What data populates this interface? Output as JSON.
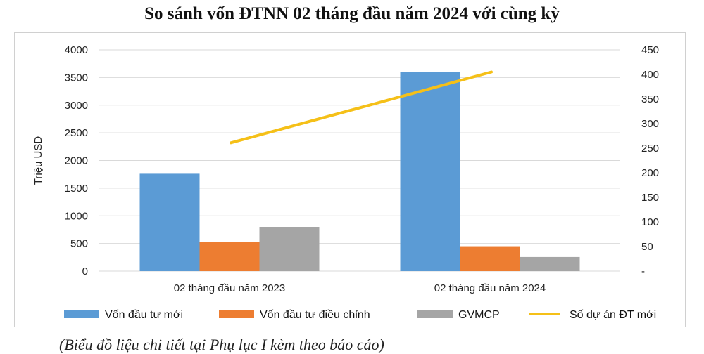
{
  "chart_data": {
    "type": "bar",
    "title": "So sánh vốn ĐTNN 02 tháng đầu năm 2024 với cùng kỳ",
    "ylabel": "Triệu USD",
    "y2label": "",
    "categories": [
      "02 tháng đầu năm 2023",
      "02 tháng đầu năm 2024"
    ],
    "ylim": [
      0,
      4000
    ],
    "yticks": [
      "0",
      "500",
      "1000",
      "1500",
      "2000",
      "2500",
      "3000",
      "3500",
      "4000"
    ],
    "y2lim": [
      0,
      450
    ],
    "y2ticks": [
      "-",
      "50",
      "100",
      "150",
      "200",
      "250",
      "300",
      "350",
      "400",
      "450"
    ],
    "grid": true,
    "legend_position": "bottom",
    "series": [
      {
        "name": "Vốn đầu tư mới",
        "type": "bar",
        "axis": "left",
        "color": "#5b9bd5",
        "values": [
          1760,
          3600
        ]
      },
      {
        "name": "Vốn đầu tư điều chỉnh",
        "type": "bar",
        "axis": "left",
        "color": "#ed7d31",
        "values": [
          530,
          450
        ]
      },
      {
        "name": "GVMCP",
        "type": "bar",
        "axis": "left",
        "color": "#a5a5a5",
        "values": [
          800,
          255
        ]
      },
      {
        "name": "Số dự án ĐT mới",
        "type": "line",
        "axis": "right",
        "color": "#f5c018",
        "values": [
          261,
          405
        ]
      }
    ]
  },
  "caption": "(Biểu đồ liệu chi tiết tại Phụ lục I kèm theo báo cáo)"
}
